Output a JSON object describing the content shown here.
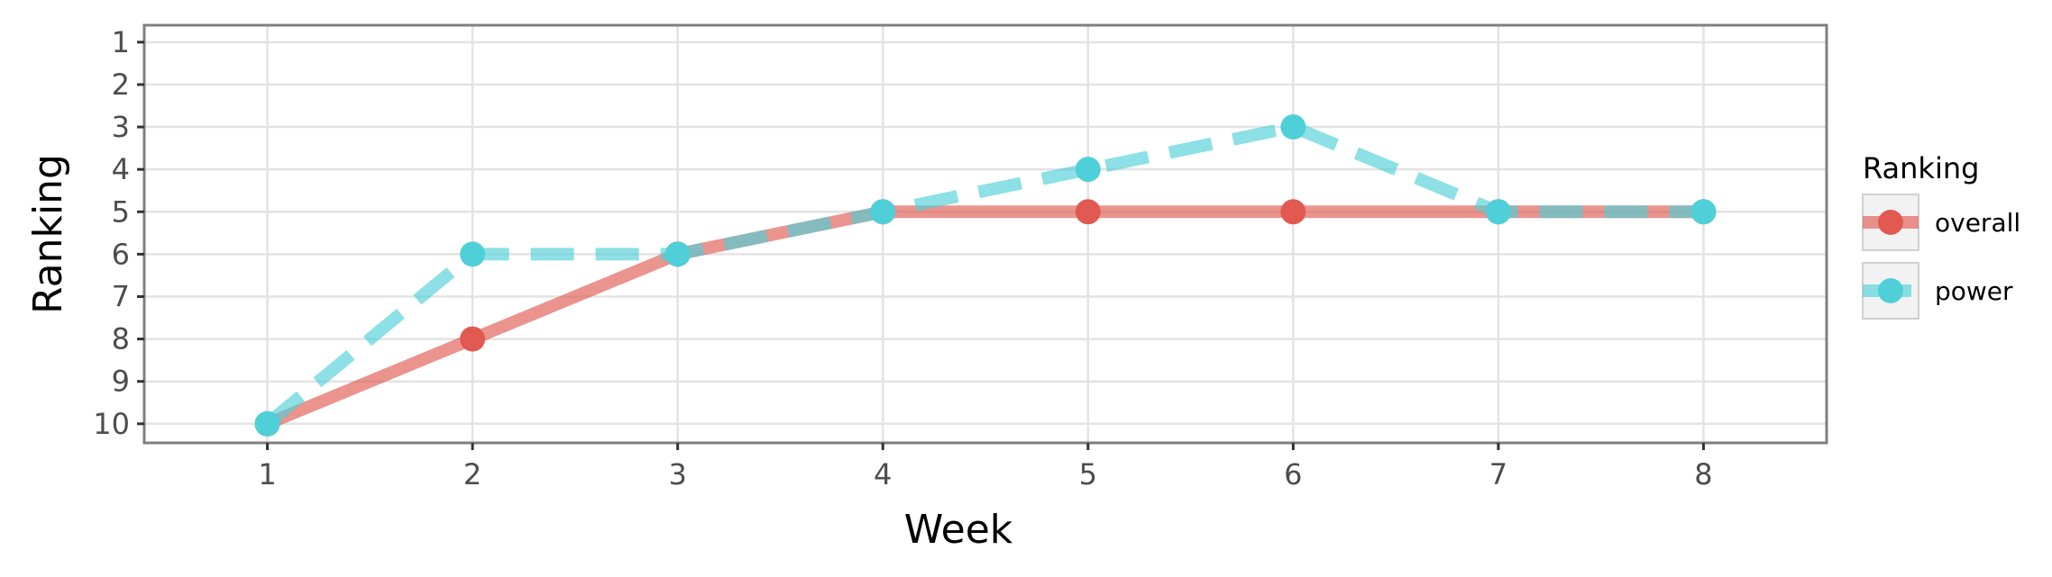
{
  "chart_data": {
    "type": "line",
    "title": "",
    "xlabel": "Week",
    "ylabel": "Ranking",
    "x": [
      1,
      2,
      3,
      4,
      5,
      6,
      7,
      8
    ],
    "x_ticks": [
      "1",
      "2",
      "3",
      "4",
      "5",
      "6",
      "7",
      "8"
    ],
    "y_ticks": [
      "1",
      "2",
      "3",
      "4",
      "5",
      "6",
      "7",
      "8",
      "9",
      "10"
    ],
    "xlim": [
      0.4,
      8.6
    ],
    "ylim": [
      10.45,
      0.6
    ],
    "y_reversed": true,
    "grid": true,
    "legend": {
      "title": "Ranking",
      "position": "right"
    },
    "series": [
      {
        "name": "overall",
        "values": [
          10,
          8,
          6,
          5,
          5,
          5,
          5,
          5
        ],
        "color": "#E15A52",
        "line_style": "solid"
      },
      {
        "name": "power",
        "values": [
          10,
          6,
          6,
          5,
          4,
          3,
          5,
          5
        ],
        "color": "#4FD0D8",
        "line_style": "dashed"
      }
    ]
  }
}
